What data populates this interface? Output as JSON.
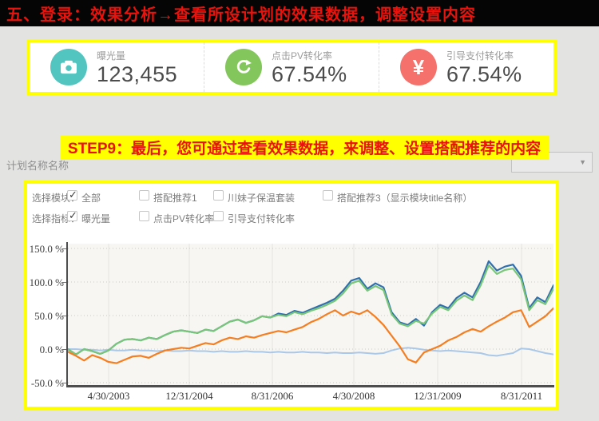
{
  "header": {
    "title": "五、登录：效果分析→查看所设计划的效果数据，调整设置内容"
  },
  "stats": {
    "items": [
      {
        "icon": "camera-icon",
        "label": "曝光量",
        "value": "123,455",
        "color": "#52c5c0"
      },
      {
        "icon": "refresh-icon",
        "label": "点击PV转化率",
        "value": "67.54%",
        "color": "#83c65c"
      },
      {
        "icon": "yen-icon",
        "label": "引导支付转化率",
        "value": "67.54%",
        "color": "#f4716c",
        "glyph": "¥"
      }
    ]
  },
  "plan_row": {
    "label": "计划名称名称",
    "dropdown_arrow": "▼"
  },
  "step_banner": {
    "text": "STEP9：最后，您可通过查看效果数据，来调整、设置搭配推荐的内容"
  },
  "filters": {
    "module_row": {
      "label": "选择模块：",
      "options": [
        {
          "label": "全部",
          "checked": true
        },
        {
          "label": "搭配推荐1",
          "checked": false
        },
        {
          "label": "川妹子保温套装",
          "checked": false
        },
        {
          "label": "搭配推荐3（显示模块title名称）",
          "checked": false
        }
      ]
    },
    "metric_row": {
      "label": "选择指标：",
      "options": [
        {
          "label": "曝光量",
          "checked": true
        },
        {
          "label": "点击PV转化率",
          "checked": false
        },
        {
          "label": "引导支付转化率",
          "checked": false
        }
      ]
    }
  },
  "chart_data": {
    "type": "line",
    "title": "",
    "xlabel": "",
    "ylabel": "",
    "ylim": [
      -50,
      150
    ],
    "grid": true,
    "legend": "none",
    "y_ticks": [
      "150.0 %",
      "100.0 %",
      "50.0 %",
      "0.0 %",
      "-50.0 %"
    ],
    "x_ticks": [
      "4/30/2003",
      "12/31/2004",
      "8/31/2006",
      "4/30/2008",
      "12/31/2009",
      "8/31/2011"
    ],
    "series": [
      {
        "name": "flat-lightblue",
        "color": "#aac8e8",
        "stroke_width": 2,
        "values": [
          0,
          0,
          -1,
          -1,
          -2,
          -1,
          -2,
          -2,
          -1,
          -2,
          -2,
          -3,
          -2,
          -3,
          -3,
          -2,
          -3,
          -3,
          -4,
          -3,
          -4,
          -4,
          -3,
          -4,
          -4,
          -5,
          -4,
          -5,
          -5,
          -4,
          -5,
          -5,
          -6,
          -5,
          -6,
          -6,
          -5,
          -6,
          -7,
          -6,
          -2,
          1,
          2,
          1,
          -1,
          -2,
          -3,
          -2,
          -3,
          -4,
          -5,
          -6,
          -9,
          -10,
          -8,
          -6,
          1,
          0,
          -3,
          -6,
          -8
        ]
      },
      {
        "name": "dark-blue",
        "color": "#2e6fad",
        "stroke_width": 2.2,
        "values": [
          0,
          -8,
          0,
          -3,
          -7,
          -2,
          8,
          14,
          15,
          13,
          17,
          15,
          21,
          26,
          28,
          26,
          24,
          29,
          27,
          34,
          41,
          44,
          39,
          43,
          49,
          47,
          53,
          51,
          57,
          54,
          59,
          64,
          69,
          75,
          87,
          102,
          106,
          90,
          98,
          92,
          55,
          40,
          36,
          45,
          35,
          55,
          66,
          61,
          76,
          84,
          77,
          100,
          131,
          117,
          123,
          126,
          109,
          61,
          77,
          70,
          95
        ]
      },
      {
        "name": "green",
        "color": "#79c679",
        "stroke_width": 2.2,
        "values": [
          0,
          -8,
          0,
          -3,
          -7,
          -2,
          8,
          14,
          15,
          13,
          17,
          15,
          21,
          26,
          28,
          26,
          24,
          29,
          27,
          34,
          41,
          44,
          39,
          43,
          49,
          47,
          51,
          49,
          55,
          52,
          57,
          61,
          66,
          72,
          83,
          98,
          102,
          87,
          94,
          88,
          52,
          38,
          34,
          42,
          38,
          53,
          63,
          58,
          72,
          80,
          73,
          95,
          125,
          112,
          118,
          120,
          104,
          58,
          73,
          67,
          90
        ]
      },
      {
        "name": "orange",
        "color": "#f57e20",
        "stroke_width": 2.2,
        "values": [
          -4,
          -10,
          -17,
          -9,
          -13,
          -19,
          -21,
          -16,
          -11,
          -10,
          -13,
          -7,
          -2,
          0,
          2,
          1,
          5,
          9,
          7,
          13,
          17,
          15,
          19,
          17,
          21,
          24,
          27,
          25,
          29,
          33,
          40,
          45,
          52,
          58,
          50,
          56,
          52,
          58,
          48,
          36,
          20,
          4,
          -15,
          -20,
          -5,
          0,
          5,
          13,
          18,
          25,
          30,
          26,
          34,
          41,
          47,
          55,
          58,
          33,
          41,
          49,
          61
        ]
      }
    ]
  }
}
